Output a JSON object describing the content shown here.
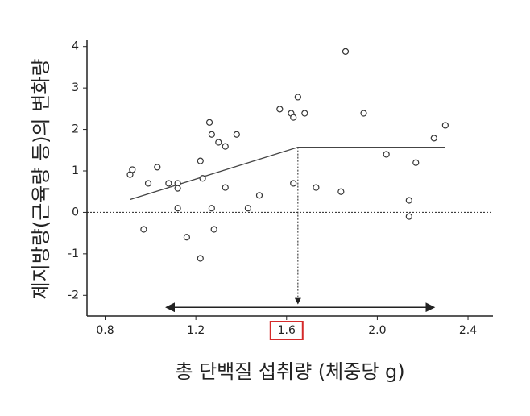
{
  "chart_data": {
    "type": "scatter",
    "x_label": "총 단백질 섭취량 (체중당 g)",
    "y_label": "제지방량(근육량 등)의 변화량",
    "x": [
      0.91,
      0.92,
      0.99,
      1.03,
      0.97,
      1.08,
      1.12,
      1.12,
      1.12,
      1.16,
      1.22,
      1.23,
      1.22,
      1.26,
      1.27,
      1.27,
      1.28,
      1.3,
      1.33,
      1.33,
      1.38,
      1.43,
      1.48,
      1.57,
      1.62,
      1.63,
      1.63,
      1.65,
      1.68,
      1.73,
      1.84,
      1.86,
      1.94,
      2.04,
      2.14,
      2.14,
      2.17,
      2.25,
      2.3
    ],
    "values": [
      0.91,
      1.03,
      0.7,
      1.09,
      -0.41,
      0.7,
      0.7,
      0.58,
      0.1,
      -0.6,
      1.24,
      0.82,
      -1.11,
      2.17,
      1.88,
      0.1,
      -0.41,
      1.69,
      1.59,
      0.6,
      1.88,
      0.1,
      0.41,
      2.49,
      2.39,
      2.29,
      0.7,
      2.78,
      2.39,
      0.6,
      0.5,
      3.88,
      2.39,
      1.4,
      0.29,
      -0.1,
      1.2,
      1.79,
      2.1
    ],
    "color": "#333333",
    "fit_line": {
      "x": [
        0.91,
        1.65,
        2.3
      ],
      "y": [
        0.31,
        1.57,
        1.57
      ]
    },
    "breakpoint_arrow": {
      "x": 1.65,
      "y": [
        1.57,
        -2.2
      ]
    },
    "range_arrow": {
      "x": [
        1.07,
        2.25
      ],
      "y": -2.29
    },
    "zero_line": 0,
    "boxed_xtick": 1.6,
    "xlim": [
      0.72,
      2.51
    ],
    "ylim": [
      -2.5,
      4.15
    ],
    "xticks": [
      0.8,
      1.2,
      1.6,
      {
        "value": 2,
        "label": "2.0"
      },
      2.4
    ],
    "yticks": [
      -2,
      -1,
      0,
      1,
      2,
      3,
      4
    ]
  }
}
